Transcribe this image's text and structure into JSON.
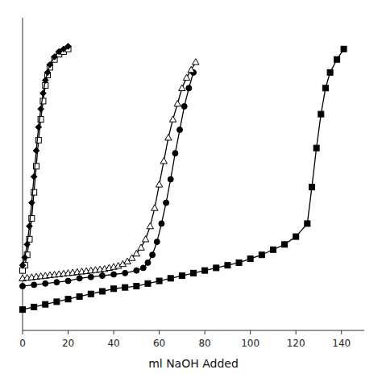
{
  "chart_data": {
    "type": "line",
    "x_label": "ml NaOH Added",
    "xlim": [
      0,
      150
    ],
    "ylim": [
      1.5,
      13.5
    ],
    "xticks": [
      0,
      20,
      40,
      60,
      80,
      100,
      120,
      140
    ],
    "yticks": [],
    "tick_labels": "x",
    "grid": false,
    "series": [
      {
        "color": "black",
        "marker": "square",
        "x": [
          0,
          5,
          10,
          15,
          20,
          25,
          30,
          35,
          40,
          45,
          50,
          55,
          60,
          65,
          70,
          75,
          80,
          85,
          90,
          95,
          100,
          105,
          110,
          115,
          120,
          125,
          127,
          129,
          131,
          133,
          135,
          138,
          141
        ],
        "values": [
          2.3,
          2.4,
          2.5,
          2.6,
          2.7,
          2.8,
          2.9,
          3.0,
          3.1,
          3.15,
          3.2,
          3.3,
          3.4,
          3.5,
          3.6,
          3.7,
          3.8,
          3.9,
          4.0,
          4.1,
          4.25,
          4.4,
          4.6,
          4.8,
          5.1,
          5.6,
          7.0,
          8.5,
          9.8,
          10.8,
          11.4,
          11.9,
          12.3
        ]
      },
      {
        "color": "black",
        "marker": "circle",
        "x": [
          0,
          5,
          10,
          15,
          20,
          25,
          30,
          35,
          40,
          45,
          50,
          53,
          55,
          57,
          59,
          61,
          63,
          65,
          67,
          69,
          71,
          73,
          75
        ],
        "values": [
          3.2,
          3.25,
          3.3,
          3.35,
          3.4,
          3.5,
          3.55,
          3.6,
          3.65,
          3.7,
          3.8,
          3.9,
          4.1,
          4.4,
          4.9,
          5.6,
          6.4,
          7.3,
          8.3,
          9.2,
          10.1,
          10.8,
          11.4
        ]
      },
      {
        "color": "black",
        "marker": "triangle-open",
        "x": [
          0,
          2,
          4,
          6,
          8,
          10,
          12,
          14,
          16,
          18,
          20,
          22,
          24,
          26,
          28,
          30,
          32,
          34,
          36,
          38,
          40,
          42,
          44,
          46,
          48,
          50,
          52,
          54,
          56,
          58,
          60,
          62,
          64,
          66,
          68,
          70,
          72,
          74,
          76
        ],
        "values": [
          3.5,
          3.52,
          3.54,
          3.56,
          3.58,
          3.6,
          3.62,
          3.64,
          3.66,
          3.68,
          3.7,
          3.72,
          3.74,
          3.76,
          3.78,
          3.8,
          3.82,
          3.84,
          3.86,
          3.9,
          3.94,
          3.98,
          4.05,
          4.15,
          4.28,
          4.45,
          4.68,
          5.0,
          5.5,
          6.2,
          7.1,
          8.0,
          8.9,
          9.6,
          10.2,
          10.8,
          11.2,
          11.5,
          11.8
        ]
      },
      {
        "color": "black",
        "marker": "square-open",
        "x": [
          0,
          1,
          2,
          3,
          4,
          5,
          6,
          7,
          8,
          9,
          10,
          11,
          12,
          14,
          16,
          18,
          20
        ],
        "values": [
          3.8,
          4.0,
          4.4,
          5.0,
          5.8,
          6.8,
          7.8,
          8.8,
          9.6,
          10.3,
          10.9,
          11.3,
          11.6,
          11.9,
          12.1,
          12.2,
          12.3
        ]
      },
      {
        "color": "black",
        "marker": "diamond",
        "x": [
          0,
          1,
          2,
          3,
          4,
          5,
          6,
          7,
          8,
          9,
          10,
          11,
          12,
          14,
          16,
          18,
          20
        ],
        "values": [
          4.0,
          4.3,
          4.8,
          5.5,
          6.4,
          7.4,
          8.4,
          9.3,
          10.0,
          10.6,
          11.1,
          11.4,
          11.7,
          12.0,
          12.2,
          12.3,
          12.4
        ]
      }
    ]
  }
}
